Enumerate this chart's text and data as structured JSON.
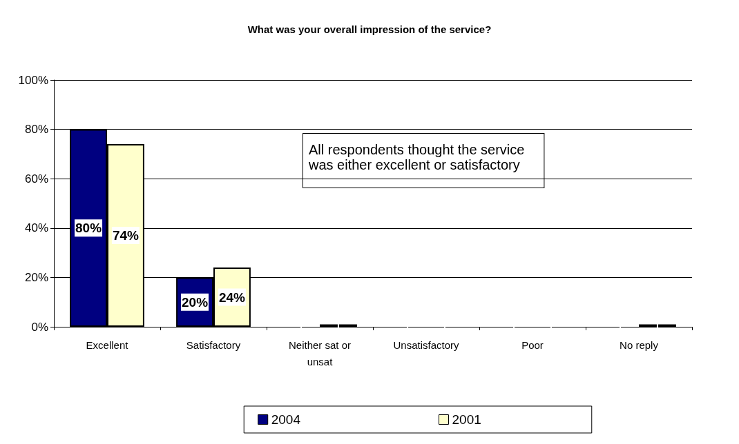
{
  "chart_data": {
    "type": "bar",
    "title": "What was your overall impression of the service?",
    "categories": [
      "Excellent",
      "Satisfactory",
      "Neither sat or\nunsat",
      "Unsatisfactory",
      "Poor",
      "No reply"
    ],
    "series": [
      {
        "name": "2004",
        "color": "#000080",
        "values": [
          80,
          20,
          0,
          0,
          0,
          0
        ],
        "value_labels": [
          "80%",
          "20%",
          null,
          null,
          null,
          null
        ]
      },
      {
        "name": "2001",
        "color": "#ffffcc",
        "values": [
          74,
          24,
          1,
          0,
          0,
          1
        ],
        "value_labels": [
          "74%",
          "24%",
          null,
          null,
          null,
          null
        ]
      }
    ],
    "ylim": [
      0,
      100
    ],
    "yticks": [
      {
        "value": 0,
        "label": "0%"
      },
      {
        "value": 20,
        "label": "20%"
      },
      {
        "value": 40,
        "label": "40%"
      },
      {
        "value": 60,
        "label": "60%"
      },
      {
        "value": 80,
        "label": "80%"
      },
      {
        "value": 100,
        "label": "100%"
      }
    ],
    "grid": "y",
    "legend": "bottom",
    "annotations": [
      "All respondents thought the service\nwas either excellent or satisfactory"
    ]
  }
}
